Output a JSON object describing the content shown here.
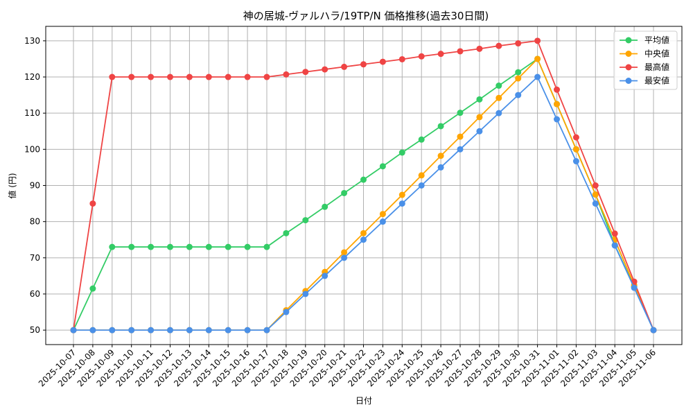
{
  "chart_data": {
    "type": "line",
    "title": "神の居城-ヴァルハラ/19TP/N 価格推移(過去30日間)",
    "xlabel": "日付",
    "ylabel": "値 (円)",
    "ylim": [
      46,
      134
    ],
    "yticks": [
      50,
      60,
      70,
      80,
      90,
      100,
      110,
      120,
      130
    ],
    "grid": true,
    "legend_position": "top-right",
    "categories": [
      "2025-10-07",
      "2025-10-08",
      "2025-10-09",
      "2025-10-10",
      "2025-10-11",
      "2025-10-12",
      "2025-10-13",
      "2025-10-14",
      "2025-10-15",
      "2025-10-16",
      "2025-10-17",
      "2025-10-18",
      "2025-10-19",
      "2025-10-20",
      "2025-10-21",
      "2025-10-22",
      "2025-10-23",
      "2025-10-24",
      "2025-10-25",
      "2025-10-26",
      "2025-10-27",
      "2025-10-28",
      "2025-10-29",
      "2025-10-30",
      "2025-10-31",
      "2025-11-01",
      "2025-11-02",
      "2025-11-03",
      "2025-11-04",
      "2025-11-05",
      "2025-11-06"
    ],
    "series": [
      {
        "name": "平均値",
        "color": "#33cc66",
        "values": [
          50,
          61.5,
          73,
          73,
          73,
          73,
          73,
          73,
          73,
          73,
          73,
          76.8,
          80.4,
          84.1,
          87.9,
          91.6,
          95.3,
          99.1,
          102.7,
          106.4,
          110.1,
          113.8,
          117.6,
          121.3,
          125,
          112.5,
          100,
          87.5,
          73.5,
          62,
          50
        ]
      },
      {
        "name": "中央値",
        "color": "#ffa500",
        "values": [
          50,
          50,
          50,
          50,
          50,
          50,
          50,
          50,
          50,
          50,
          50,
          55.5,
          60.8,
          66.1,
          71.5,
          76.8,
          82.1,
          87.4,
          92.8,
          98.2,
          103.5,
          108.9,
          114.2,
          119.6,
          125,
          112.5,
          100,
          87.5,
          75,
          62.5,
          50
        ]
      },
      {
        "name": "最高値",
        "color": "#ef4444",
        "values": [
          50,
          85,
          120,
          120,
          120,
          120,
          120,
          120,
          120,
          120,
          120,
          120.7,
          121.4,
          122.1,
          122.8,
          123.5,
          124.2,
          124.9,
          125.7,
          126.4,
          127.1,
          127.8,
          128.6,
          129.3,
          130,
          116.5,
          103.3,
          90,
          76.7,
          63.4,
          50
        ]
      },
      {
        "name": "最安値",
        "color": "#4a90e8",
        "values": [
          50,
          50,
          50,
          50,
          50,
          50,
          50,
          50,
          50,
          50,
          50,
          55,
          60,
          65,
          70,
          75,
          80,
          85,
          90,
          95,
          100,
          105,
          110,
          115,
          120,
          108.3,
          96.7,
          85,
          73.4,
          61.7,
          50
        ]
      }
    ]
  }
}
